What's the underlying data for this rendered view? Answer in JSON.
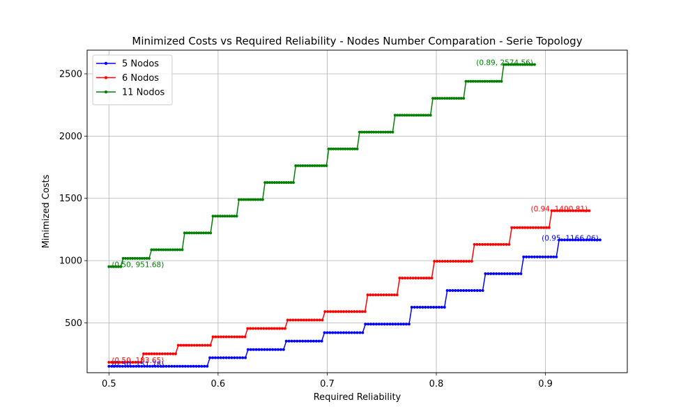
{
  "chart_data": {
    "type": "line",
    "title": "Minimized Costs vs Required Reliability - Nodes Number Comparation - Serie Topology",
    "xlabel": "Required Reliability",
    "ylabel": "Minimized Costs",
    "xlim": [
      0.48,
      0.975
    ],
    "ylim": [
      100,
      2690
    ],
    "xticks": [
      0.5,
      0.6,
      0.7,
      0.8,
      0.9
    ],
    "xtick_labels": [
      "0.5",
      "0.6",
      "0.7",
      "0.8",
      "0.9"
    ],
    "yticks": [
      500,
      1000,
      1500,
      2000,
      2500
    ],
    "ytick_labels": [
      "500",
      "1000",
      "1500",
      "2000",
      "2500"
    ],
    "grid": true,
    "legend_position": "top-left",
    "series": [
      {
        "name": "5 Nodos",
        "color": "#0000ff",
        "x_start": 0.5,
        "x_end": 0.95,
        "steps": [
          {
            "x": 0.5,
            "y": 151.78
          },
          {
            "x": 0.592,
            "y": 220
          },
          {
            "x": 0.627,
            "y": 286
          },
          {
            "x": 0.661,
            "y": 354
          },
          {
            "x": 0.697,
            "y": 422
          },
          {
            "x": 0.735,
            "y": 490
          },
          {
            "x": 0.777,
            "y": 626
          },
          {
            "x": 0.81,
            "y": 760
          },
          {
            "x": 0.843,
            "y": 895
          },
          {
            "x": 0.878,
            "y": 1030
          },
          {
            "x": 0.912,
            "y": 1166.06
          }
        ],
        "annotations": [
          {
            "text": "(0.50, 151.78)",
            "x": 0.5,
            "y": 151.78
          },
          {
            "text": "(0.95, 1166.06)",
            "x": 0.95,
            "y": 1166.06
          }
        ]
      },
      {
        "name": "6 Nodos",
        "color": "#ff0000",
        "x_start": 0.5,
        "x_end": 0.94,
        "steps": [
          {
            "x": 0.5,
            "y": 183.65
          },
          {
            "x": 0.531,
            "y": 252
          },
          {
            "x": 0.563,
            "y": 320
          },
          {
            "x": 0.595,
            "y": 388
          },
          {
            "x": 0.627,
            "y": 455
          },
          {
            "x": 0.662,
            "y": 523
          },
          {
            "x": 0.697,
            "y": 591
          },
          {
            "x": 0.735,
            "y": 725
          },
          {
            "x": 0.765,
            "y": 860
          },
          {
            "x": 0.798,
            "y": 995
          },
          {
            "x": 0.833,
            "y": 1130
          },
          {
            "x": 0.868,
            "y": 1265
          },
          {
            "x": 0.904,
            "y": 1400.81
          }
        ],
        "annotations": [
          {
            "text": "(0.50, 183.65)",
            "x": 0.5,
            "y": 183.65
          },
          {
            "text": "(0.94, 1400.81)",
            "x": 0.94,
            "y": 1400.81
          }
        ]
      },
      {
        "name": "11 Nodos",
        "color": "#008000",
        "x_start": 0.5,
        "x_end": 0.89,
        "steps": [
          {
            "x": 0.5,
            "y": 951.68
          },
          {
            "x": 0.512,
            "y": 1018
          },
          {
            "x": 0.538,
            "y": 1087
          },
          {
            "x": 0.568,
            "y": 1222
          },
          {
            "x": 0.595,
            "y": 1357
          },
          {
            "x": 0.619,
            "y": 1490
          },
          {
            "x": 0.643,
            "y": 1627
          },
          {
            "x": 0.67,
            "y": 1762
          },
          {
            "x": 0.7,
            "y": 1897
          },
          {
            "x": 0.729,
            "y": 2032
          },
          {
            "x": 0.762,
            "y": 2168
          },
          {
            "x": 0.795,
            "y": 2303
          },
          {
            "x": 0.826,
            "y": 2440
          },
          {
            "x": 0.86,
            "y": 2574.56
          }
        ],
        "annotations": [
          {
            "text": "(0.50, 951.68)",
            "x": 0.5,
            "y": 951.68
          },
          {
            "text": "(0.89, 2574.56)",
            "x": 0.89,
            "y": 2574.56
          }
        ]
      }
    ]
  }
}
